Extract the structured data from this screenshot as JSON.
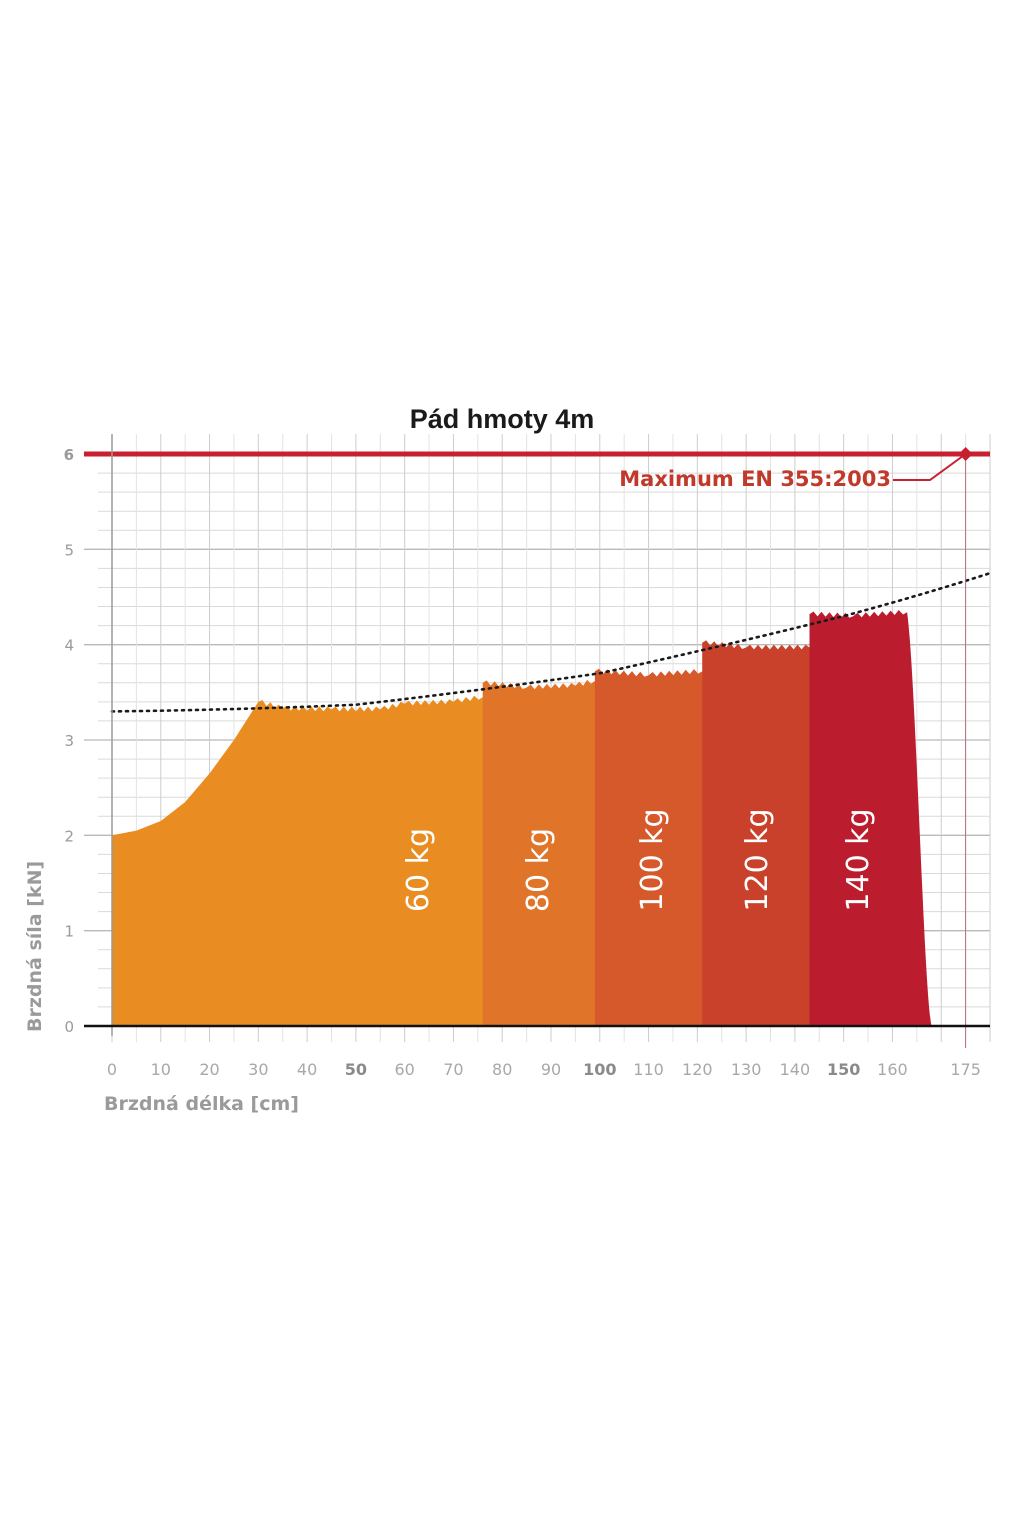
{
  "chart_data": {
    "type": "area",
    "title": "Pád hmoty 4m",
    "xlabel": "Brzdná délka [cm]",
    "ylabel": "Brzdná síla [kN]",
    "xlim": [
      0,
      180
    ],
    "ylim": [
      0,
      6
    ],
    "grid": true,
    "x_ticks": [
      "0",
      "10",
      "20",
      "30",
      "40",
      "50",
      "60",
      "70",
      "80",
      "90",
      "100",
      "110",
      "120",
      "130",
      "140",
      "150",
      "160",
      "175"
    ],
    "x_ticks_bold": [
      "50",
      "100",
      "150"
    ],
    "y_ticks": [
      "0",
      "1",
      "2",
      "3",
      "4",
      "5",
      "6"
    ],
    "limit": {
      "value": 6,
      "label": "Maximum EN 355:2003",
      "x": 175,
      "color": "#c8202e"
    },
    "trend": {
      "type": "dotted",
      "points": [
        [
          0,
          3.3
        ],
        [
          50,
          3.37
        ],
        [
          100,
          3.7
        ],
        [
          150,
          4.3
        ],
        [
          180,
          4.75
        ]
      ]
    },
    "series": [
      {
        "name": "60 kg",
        "color": "#e98d22",
        "end": 80,
        "points": [
          [
            0,
            2.0
          ],
          [
            5,
            2.05
          ],
          [
            10,
            2.15
          ],
          [
            15,
            2.35
          ],
          [
            20,
            2.65
          ],
          [
            25,
            3.0
          ],
          [
            30,
            3.4
          ],
          [
            35,
            3.33
          ],
          [
            45,
            3.32
          ],
          [
            55,
            3.32
          ],
          [
            60,
            3.38
          ],
          [
            70,
            3.4
          ],
          [
            76,
            3.45
          ]
        ]
      },
      {
        "name": "80 kg",
        "color": "#e0752a",
        "end": 103,
        "points": [
          [
            76,
            3.6
          ],
          [
            85,
            3.55
          ],
          [
            95,
            3.57
          ],
          [
            99,
            3.62
          ]
        ]
      },
      {
        "name": "100 kg",
        "color": "#d5592b",
        "end": 126,
        "points": [
          [
            99,
            3.72
          ],
          [
            110,
            3.68
          ],
          [
            121,
            3.72
          ]
        ]
      },
      {
        "name": "120 kg",
        "color": "#c9412b",
        "end": 149,
        "points": [
          [
            121,
            4.02
          ],
          [
            130,
            3.97
          ],
          [
            143,
            3.97
          ]
        ]
      },
      {
        "name": "140 kg",
        "color": "#bc1d2e",
        "end": 168,
        "points": [
          [
            143,
            4.32
          ],
          [
            152,
            4.3
          ],
          [
            163,
            4.34
          ]
        ]
      }
    ]
  }
}
